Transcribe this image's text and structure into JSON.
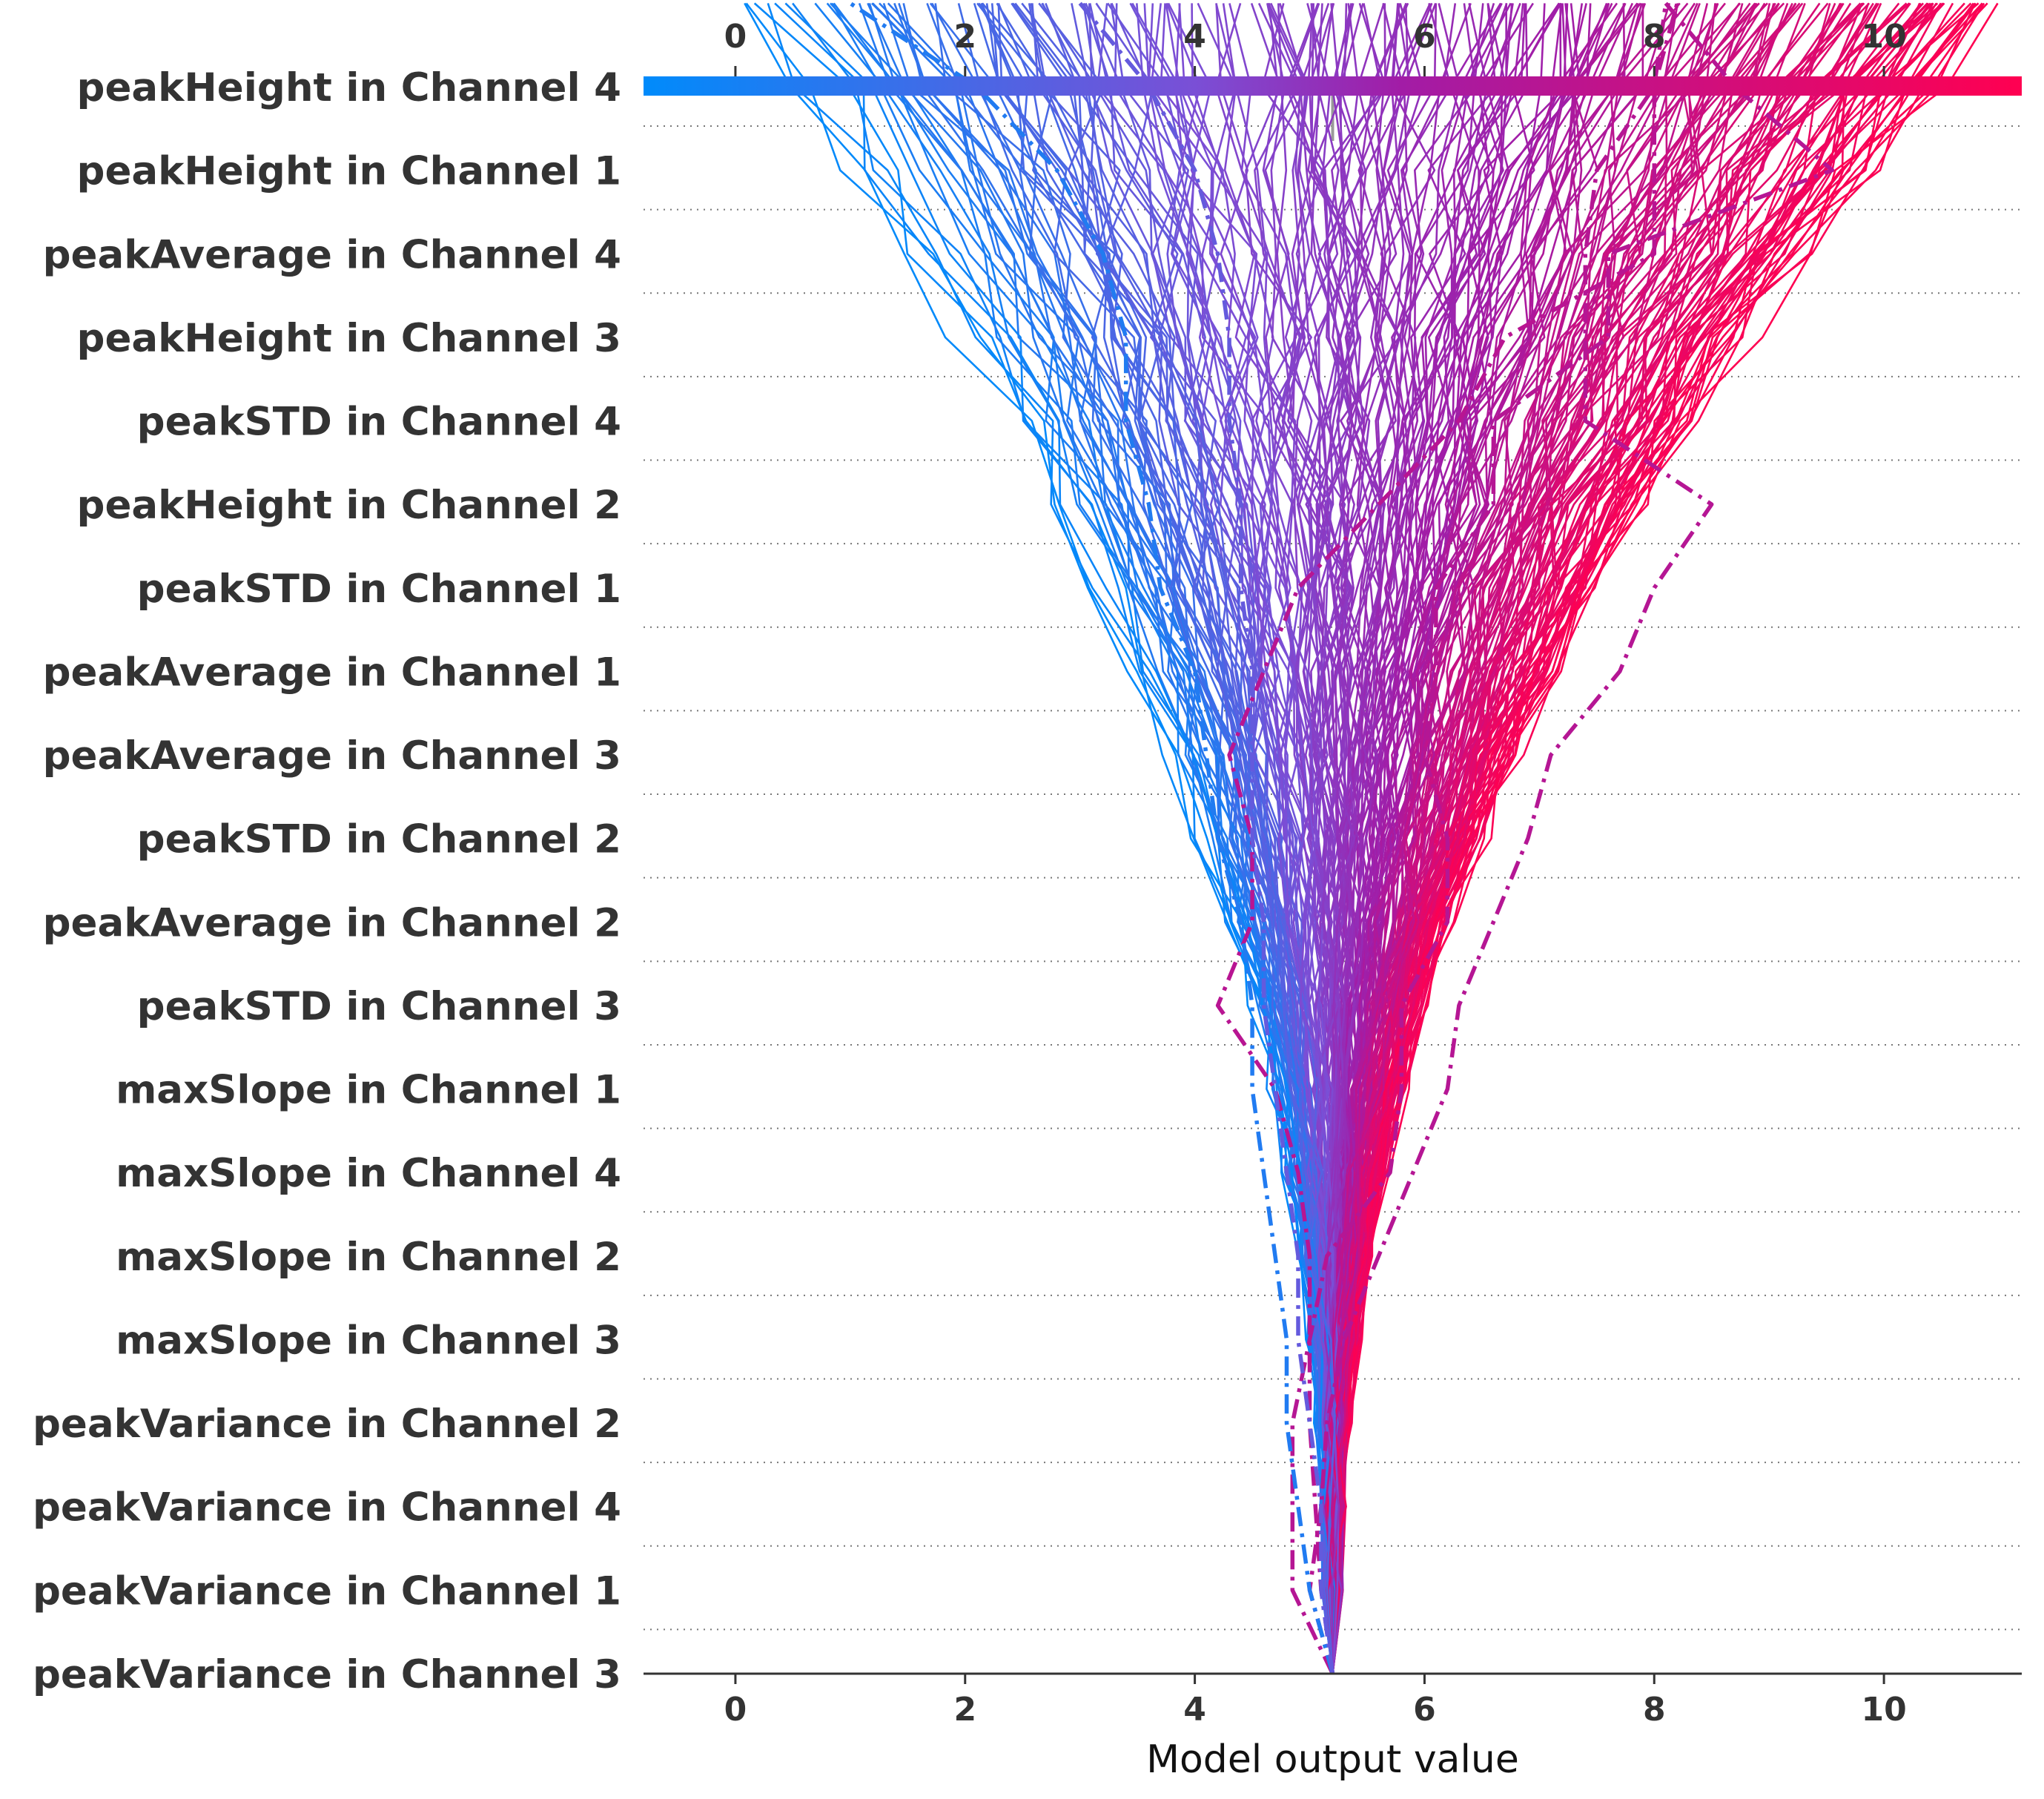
{
  "chart_data": {
    "type": "line",
    "subtype": "decision-plot",
    "xlabel": "Model output value",
    "x_range": [
      -0.8,
      11.2
    ],
    "xticks": [
      0,
      2,
      4,
      6,
      8,
      10
    ],
    "base_value": 5.2,
    "features": [
      "peakHeight in Channel 4",
      "peakHeight in Channel 1",
      "peakAverage in Channel 4",
      "peakHeight in Channel 3",
      "peakSTD in Channel 4",
      "peakHeight in Channel 2",
      "peakSTD in Channel 1",
      "peakAverage in Channel 1",
      "peakAverage in Channel 3",
      "peakSTD in Channel 2",
      "peakAverage in Channel 2",
      "peakSTD in Channel 3",
      "maxSlope in Channel 1",
      "maxSlope in Channel 4",
      "maxSlope in Channel 2",
      "maxSlope in Channel 3",
      "peakVariance in Channel 2",
      "peakVariance in Channel 4",
      "peakVariance in Channel 1",
      "peakVariance in Channel 3"
    ],
    "colormap": [
      "#008bfb",
      "#7a4fd6",
      "#a21ca6",
      "#ff0051"
    ],
    "highlighted_series": [
      {
        "style": "dashdot",
        "values": [
          5.2,
          4.85,
          4.85,
          4.85,
          5.0,
          5.15,
          5.7,
          5.8,
          5.8,
          6.2,
          6.2,
          6.0,
          6.1,
          6.1,
          6.6,
          6.6,
          7.6,
          7.6,
          9.55,
          8.7,
          8.1
        ]
      },
      {
        "style": "dashdot",
        "values": [
          5.2,
          5.1,
          5.05,
          5.0,
          5.0,
          5.0,
          4.9,
          4.7,
          4.2,
          4.5,
          4.5,
          4.3,
          4.6,
          4.9,
          5.6,
          6.3,
          6.7,
          8.0,
          8.0,
          8.0,
          8.2
        ]
      },
      {
        "style": "dashdot",
        "values": [
          5.2,
          5.0,
          5.1,
          5.15,
          5.3,
          5.6,
          5.9,
          6.2,
          6.3,
          6.6,
          6.9,
          7.1,
          7.7,
          8.0,
          8.5,
          7.4,
          7.4,
          7.4,
          7.5,
          8.0,
          8.1
        ]
      },
      {
        "style": "dashdot",
        "values": [
          5.2,
          5.0,
          4.9,
          4.8,
          4.8,
          4.7,
          4.6,
          4.5,
          4.5,
          4.4,
          4.2,
          4.1,
          4.0,
          3.7,
          3.6,
          3.4,
          3.4,
          3.2,
          2.8,
          2.1,
          1.0
        ]
      },
      {
        "style": "dashdot",
        "values": [
          5.2,
          5.1,
          5.1,
          5.0,
          4.9,
          4.9,
          4.8,
          4.7,
          4.6,
          4.6,
          4.5,
          4.5,
          4.5,
          4.4,
          4.4,
          4.3,
          4.3,
          4.2,
          4.0,
          3.6,
          3.0
        ]
      }
    ]
  }
}
